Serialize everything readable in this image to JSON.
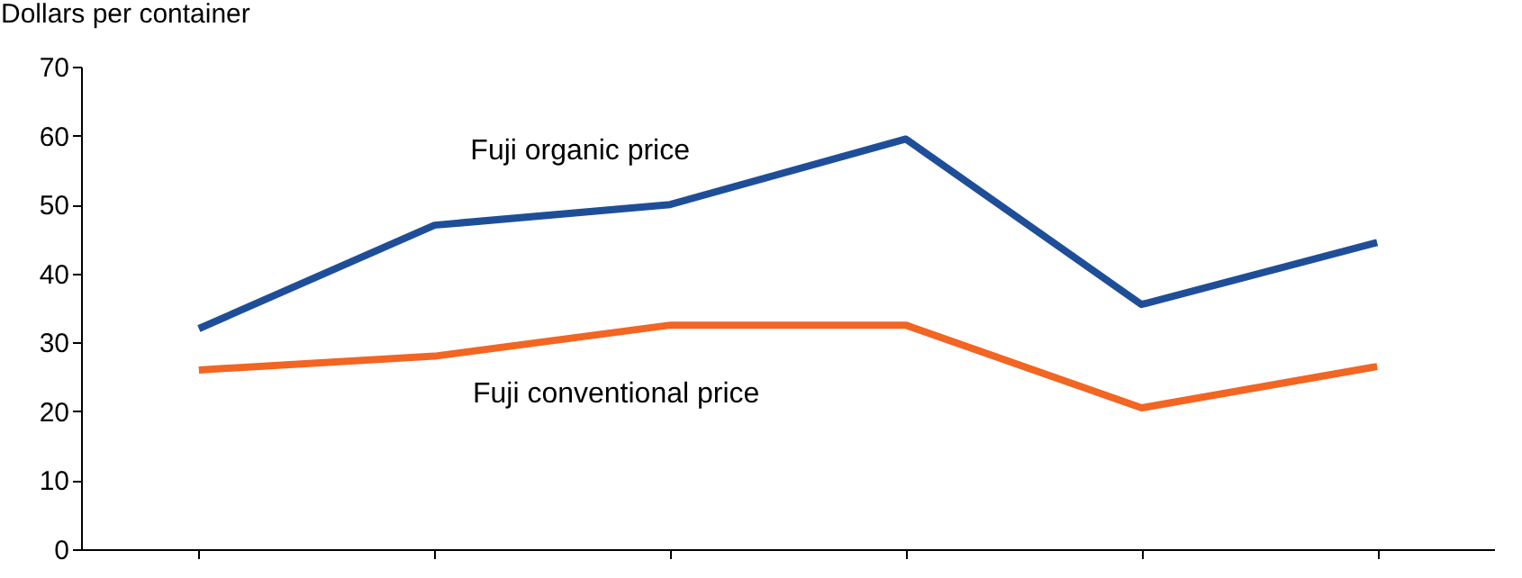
{
  "chart_data": {
    "type": "line",
    "ylabel": "Dollars per container",
    "categories": [
      null,
      null,
      null,
      null,
      null,
      null
    ],
    "series": [
      {
        "name": "Fuji organic price",
        "color": "#1f4e99",
        "values": [
          32,
          47,
          50,
          59.5,
          35.5,
          44.5
        ]
      },
      {
        "name": "Fuji conventional price",
        "color": "#f26522",
        "values": [
          26,
          28,
          32.5,
          32.5,
          20.5,
          26.5
        ]
      }
    ],
    "ylim": [
      0,
      70
    ],
    "yticks": [
      0,
      10,
      20,
      30,
      40,
      50,
      60,
      70
    ],
    "grid": false,
    "tick_labels": "y",
    "marker": "none",
    "line_style": "solid"
  }
}
